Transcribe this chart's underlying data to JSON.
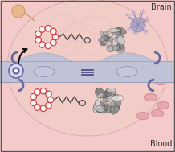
{
  "brain_bg": "#f2cdc8",
  "blood_bg": "#f5caca",
  "barrier_bg": "#c0c3d5",
  "barrier_edge": "#9a9db8",
  "brain_label": "Brain",
  "blood_label": "Blood",
  "label_color": "#333333",
  "label_fontsize": 7,
  "border_color": "#555555",
  "peptide_ring_color": "#d84040",
  "peptide_ring_fill": "#f5f5f5",
  "peptide_linker_color": "#444444",
  "neuron_color": "#8888bb",
  "neuron_soma_color": "#9090c0",
  "cell_bg_color": "#e8b888",
  "rbc_color": "#e8a8b0",
  "rbc_edge": "#cc8888",
  "tight_junction_color": "#505080",
  "endosome_color": "#6868a0",
  "vesicle_bg": "#d8d8ef",
  "vesicle_inner": "#5858a0",
  "arrow_color": "#111111",
  "gyri_color": "#e8c0be",
  "brain_outline_color": "#d8b0b0",
  "barrier_bump_color": "#c0c3d5",
  "barrier_bump_edge": "#aaaacc",
  "nucleus_color": "#c5c5dc",
  "nucleus_edge": "#8888aa"
}
